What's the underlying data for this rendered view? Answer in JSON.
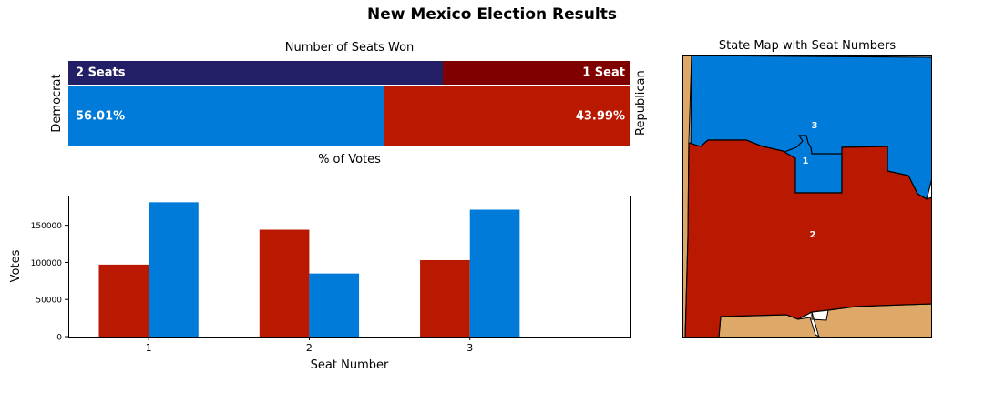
{
  "figure": {
    "suptitle": "New Mexico Election Results"
  },
  "colors": {
    "dem_seats": "#231f66",
    "rep_seats": "#800000",
    "dem_votes": "#007bd9",
    "rep_votes": "#b81900",
    "map_other": "#dea868"
  },
  "chart_data": [
    {
      "type": "bar",
      "title": "Number of Seats Won",
      "xlabel": "% of Votes",
      "side_labels": {
        "left": "Democrat",
        "right": "Republican"
      },
      "seats": {
        "democrat": 2,
        "republican": 1,
        "democrat_label": "2 Seats",
        "republican_label": "1 Seat"
      },
      "vote_share": {
        "democrat": 56.01,
        "republican": 43.99,
        "democrat_label": "56.01%",
        "republican_label": "43.99%"
      }
    },
    {
      "type": "bar",
      "title": "",
      "xlabel": "Seat Number",
      "ylabel": "Votes",
      "categories": [
        "1",
        "2",
        "3"
      ],
      "series": [
        {
          "party": "republican",
          "values": [
            97000,
            144000,
            103000
          ]
        },
        {
          "party": "democrat",
          "values": [
            181000,
            85000,
            171000
          ]
        }
      ],
      "ylim": [
        0,
        190000
      ],
      "yticks": [
        0,
        50000,
        100000,
        150000
      ],
      "grid": false
    }
  ],
  "map": {
    "title": "State Map with Seat Numbers",
    "seat_labels": [
      "1",
      "2",
      "3"
    ]
  }
}
